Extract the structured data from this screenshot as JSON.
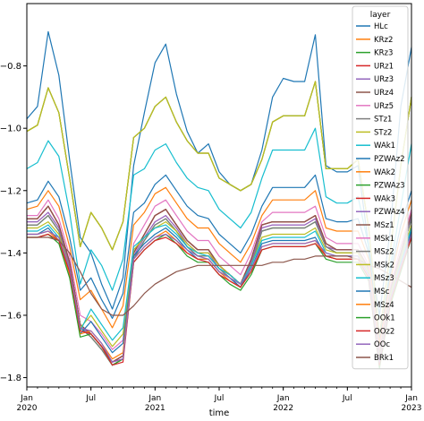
{
  "chart_data": {
    "type": "line",
    "xlabel": "time",
    "ylabel": "",
    "x_start": "2020-01",
    "x_end": "2023-01",
    "ylim": [
      -1.83,
      -0.6
    ],
    "yticks": [
      -0.8,
      -1.0,
      -1.2,
      -1.4,
      -1.6,
      -1.8
    ],
    "ytick_labels": [
      "−0.8",
      "−1.0",
      "−1.2",
      "−1.4",
      "−1.6",
      "−1.8"
    ],
    "xticks": [
      {
        "month": 0,
        "label": "Jan",
        "sub": "2020"
      },
      {
        "month": 6,
        "label": "Jul",
        "sub": ""
      },
      {
        "month": 12,
        "label": "Jan",
        "sub": "2021"
      },
      {
        "month": 18,
        "label": "Jul",
        "sub": ""
      },
      {
        "month": 24,
        "label": "Jan",
        "sub": "2022"
      },
      {
        "month": 30,
        "label": "Jul",
        "sub": ""
      },
      {
        "month": 36,
        "label": "Jan",
        "sub": "2023"
      }
    ],
    "grid": false,
    "legend": {
      "title": "layer",
      "placement": "top-right"
    },
    "series": [
      {
        "name": "HLc",
        "color": "#1f77b4",
        "values": [
          -0.97,
          -0.93,
          -0.69,
          -0.83,
          -1.1,
          -1.35,
          -1.4,
          -1.5,
          -1.58,
          -1.48,
          -1.12,
          -0.95,
          -0.79,
          -0.73,
          -0.89,
          -1.01,
          -1.08,
          -1.05,
          -1.14,
          -1.18,
          -1.2,
          -1.18,
          -1.07,
          -0.9,
          -0.84,
          -0.85,
          -0.85,
          -0.7,
          -1.12,
          -1.14,
          -1.14,
          -1.12,
          -1.38,
          -1.6,
          -1.33,
          -0.93,
          -0.74
        ]
      },
      {
        "name": "KRz2",
        "color": "#ff7f0e",
        "values": [
          -1.01,
          -0.99,
          -0.87,
          -0.95,
          -1.16,
          -1.38,
          -1.27,
          -1.32,
          -1.39,
          -1.3,
          -1.03,
          -1.0,
          -0.93,
          -0.9,
          -0.98,
          -1.04,
          -1.08,
          -1.08,
          -1.16,
          -1.18,
          -1.2,
          -1.18,
          -1.1,
          -0.98,
          -0.96,
          -0.96,
          -0.96,
          -0.85,
          -1.13,
          -1.13,
          -1.13,
          -1.1,
          -1.32,
          -1.67,
          -1.4,
          -1.12,
          -0.9
        ]
      },
      {
        "name": "KRz3",
        "color": "#2ca02c",
        "values": [
          -1.01,
          -0.99,
          -0.87,
          -0.95,
          -1.16,
          -1.38,
          -1.27,
          -1.32,
          -1.39,
          -1.3,
          -1.03,
          -1.0,
          -0.93,
          -0.9,
          -0.98,
          -1.04,
          -1.08,
          -1.08,
          -1.16,
          -1.18,
          -1.2,
          -1.18,
          -1.1,
          -0.98,
          -0.96,
          -0.96,
          -0.96,
          -0.85,
          -1.13,
          -1.13,
          -1.13,
          -1.1,
          -1.32,
          -1.67,
          -1.4,
          -1.12,
          -0.9
        ]
      },
      {
        "name": "URz1",
        "color": "#d62728",
        "values": [
          -1.29,
          -1.29,
          -1.25,
          -1.31,
          -1.43,
          -1.63,
          -1.66,
          -1.7,
          -1.75,
          -1.73,
          -1.4,
          -1.34,
          -1.28,
          -1.26,
          -1.31,
          -1.36,
          -1.39,
          -1.39,
          -1.44,
          -1.47,
          -1.5,
          -1.42,
          -1.31,
          -1.3,
          -1.3,
          -1.3,
          -1.3,
          -1.28,
          -1.37,
          -1.39,
          -1.39,
          -1.39,
          -1.45,
          -1.72,
          -1.52,
          -1.4,
          -1.27
        ]
      },
      {
        "name": "URz3",
        "color": "#9467bd",
        "values": [
          -1.29,
          -1.29,
          -1.25,
          -1.31,
          -1.43,
          -1.63,
          -1.66,
          -1.7,
          -1.75,
          -1.73,
          -1.4,
          -1.34,
          -1.28,
          -1.26,
          -1.31,
          -1.36,
          -1.39,
          -1.39,
          -1.44,
          -1.47,
          -1.5,
          -1.42,
          -1.31,
          -1.3,
          -1.3,
          -1.3,
          -1.3,
          -1.28,
          -1.37,
          -1.39,
          -1.39,
          -1.39,
          -1.45,
          -1.72,
          -1.52,
          -1.4,
          -1.27
        ]
      },
      {
        "name": "URz4",
        "color": "#8c564b",
        "values": [
          -1.29,
          -1.29,
          -1.25,
          -1.31,
          -1.43,
          -1.63,
          -1.66,
          -1.7,
          -1.75,
          -1.73,
          -1.4,
          -1.34,
          -1.28,
          -1.26,
          -1.31,
          -1.36,
          -1.39,
          -1.39,
          -1.44,
          -1.47,
          -1.5,
          -1.42,
          -1.31,
          -1.3,
          -1.3,
          -1.3,
          -1.3,
          -1.28,
          -1.37,
          -1.39,
          -1.39,
          -1.39,
          -1.45,
          -1.72,
          -1.52,
          -1.4,
          -1.27
        ]
      },
      {
        "name": "URz5",
        "color": "#e377c2",
        "values": [
          -1.3,
          -1.3,
          -1.27,
          -1.32,
          -1.44,
          -1.64,
          -1.66,
          -1.7,
          -1.75,
          -1.74,
          -1.41,
          -1.35,
          -1.3,
          -1.28,
          -1.32,
          -1.37,
          -1.4,
          -1.4,
          -1.45,
          -1.47,
          -1.5,
          -1.43,
          -1.32,
          -1.31,
          -1.31,
          -1.31,
          -1.31,
          -1.29,
          -1.38,
          -1.39,
          -1.39,
          -1.39,
          -1.45,
          -1.72,
          -1.52,
          -1.41,
          -1.28
        ]
      },
      {
        "name": "STz1",
        "color": "#7f7f7f",
        "values": [
          -1.31,
          -1.31,
          -1.28,
          -1.33,
          -1.45,
          -1.64,
          -1.67,
          -1.71,
          -1.76,
          -1.74,
          -1.42,
          -1.36,
          -1.31,
          -1.29,
          -1.33,
          -1.38,
          -1.41,
          -1.41,
          -1.45,
          -1.48,
          -1.51,
          -1.44,
          -1.33,
          -1.32,
          -1.32,
          -1.32,
          -1.32,
          -1.3,
          -1.38,
          -1.4,
          -1.4,
          -1.4,
          -1.46,
          -1.73,
          -1.53,
          -1.41,
          -1.29
        ]
      },
      {
        "name": "STz2",
        "color": "#bcbd22",
        "values": [
          -1.01,
          -0.99,
          -0.87,
          -0.95,
          -1.16,
          -1.38,
          -1.27,
          -1.32,
          -1.39,
          -1.3,
          -1.03,
          -1.0,
          -0.93,
          -0.9,
          -0.98,
          -1.04,
          -1.08,
          -1.08,
          -1.16,
          -1.18,
          -1.2,
          -1.18,
          -1.1,
          -0.98,
          -0.96,
          -0.96,
          -0.96,
          -0.85,
          -1.13,
          -1.13,
          -1.13,
          -1.1,
          -1.32,
          -1.67,
          -1.4,
          -1.12,
          -0.9
        ]
      },
      {
        "name": "WAk1",
        "color": "#17becf",
        "values": [
          -1.13,
          -1.11,
          -1.04,
          -1.09,
          -1.27,
          -1.5,
          -1.39,
          -1.44,
          -1.52,
          -1.42,
          -1.15,
          -1.13,
          -1.07,
          -1.05,
          -1.11,
          -1.16,
          -1.19,
          -1.2,
          -1.26,
          -1.29,
          -1.32,
          -1.27,
          -1.16,
          -1.07,
          -1.07,
          -1.07,
          -1.07,
          -1.0,
          -1.22,
          -1.24,
          -1.24,
          -1.22,
          -1.38,
          -1.7,
          -1.45,
          -1.25,
          -1.05
        ]
      },
      {
        "name": "PZWAz2",
        "color": "#1f77b4",
        "values": [
          -1.24,
          -1.23,
          -1.17,
          -1.22,
          -1.35,
          -1.52,
          -1.48,
          -1.55,
          -1.61,
          -1.53,
          -1.27,
          -1.24,
          -1.18,
          -1.15,
          -1.2,
          -1.25,
          -1.28,
          -1.29,
          -1.34,
          -1.37,
          -1.4,
          -1.34,
          -1.25,
          -1.19,
          -1.19,
          -1.19,
          -1.19,
          -1.15,
          -1.29,
          -1.3,
          -1.3,
          -1.29,
          -1.4,
          -1.68,
          -1.47,
          -1.31,
          -1.2
        ]
      },
      {
        "name": "WAk2",
        "color": "#ff7f0e",
        "values": [
          -1.26,
          -1.25,
          -1.2,
          -1.25,
          -1.38,
          -1.55,
          -1.52,
          -1.58,
          -1.64,
          -1.57,
          -1.31,
          -1.27,
          -1.21,
          -1.19,
          -1.24,
          -1.29,
          -1.32,
          -1.32,
          -1.37,
          -1.4,
          -1.43,
          -1.37,
          -1.28,
          -1.23,
          -1.23,
          -1.23,
          -1.23,
          -1.2,
          -1.32,
          -1.33,
          -1.33,
          -1.33,
          -1.42,
          -1.69,
          -1.49,
          -1.34,
          -1.23
        ]
      },
      {
        "name": "PZWAz3",
        "color": "#2ca02c",
        "values": [
          -1.31,
          -1.31,
          -1.28,
          -1.33,
          -1.45,
          -1.64,
          -1.67,
          -1.71,
          -1.76,
          -1.74,
          -1.42,
          -1.36,
          -1.31,
          -1.29,
          -1.33,
          -1.38,
          -1.41,
          -1.41,
          -1.45,
          -1.48,
          -1.51,
          -1.44,
          -1.33,
          -1.32,
          -1.32,
          -1.32,
          -1.32,
          -1.3,
          -1.38,
          -1.4,
          -1.4,
          -1.4,
          -1.46,
          -1.73,
          -1.53,
          -1.41,
          -1.29
        ]
      },
      {
        "name": "WAk3",
        "color": "#d62728",
        "values": [
          -1.29,
          -1.29,
          -1.25,
          -1.31,
          -1.43,
          -1.63,
          -1.66,
          -1.7,
          -1.75,
          -1.73,
          -1.4,
          -1.34,
          -1.28,
          -1.26,
          -1.31,
          -1.36,
          -1.39,
          -1.39,
          -1.44,
          -1.47,
          -1.5,
          -1.42,
          -1.31,
          -1.3,
          -1.3,
          -1.3,
          -1.3,
          -1.28,
          -1.37,
          -1.39,
          -1.39,
          -1.39,
          -1.45,
          -1.72,
          -1.52,
          -1.4,
          -1.27
        ]
      },
      {
        "name": "PZWAz4",
        "color": "#9467bd",
        "values": [
          -1.3,
          -1.3,
          -1.27,
          -1.32,
          -1.44,
          -1.64,
          -1.66,
          -1.7,
          -1.75,
          -1.74,
          -1.41,
          -1.35,
          -1.3,
          -1.28,
          -1.32,
          -1.37,
          -1.4,
          -1.4,
          -1.45,
          -1.47,
          -1.5,
          -1.43,
          -1.32,
          -1.31,
          -1.31,
          -1.31,
          -1.31,
          -1.29,
          -1.38,
          -1.39,
          -1.39,
          -1.39,
          -1.45,
          -1.72,
          -1.52,
          -1.41,
          -1.28
        ]
      },
      {
        "name": "MSz1",
        "color": "#8c564b",
        "values": [
          -1.29,
          -1.29,
          -1.25,
          -1.31,
          -1.43,
          -1.63,
          -1.66,
          -1.7,
          -1.75,
          -1.73,
          -1.4,
          -1.34,
          -1.28,
          -1.26,
          -1.31,
          -1.36,
          -1.39,
          -1.39,
          -1.44,
          -1.47,
          -1.5,
          -1.42,
          -1.31,
          -1.3,
          -1.3,
          -1.3,
          -1.3,
          -1.28,
          -1.37,
          -1.39,
          -1.39,
          -1.39,
          -1.45,
          -1.72,
          -1.52,
          -1.4,
          -1.27
        ]
      },
      {
        "name": "MSk1",
        "color": "#e377c2",
        "values": [
          -1.28,
          -1.28,
          -1.23,
          -1.29,
          -1.41,
          -1.6,
          -1.62,
          -1.66,
          -1.71,
          -1.68,
          -1.37,
          -1.31,
          -1.25,
          -1.23,
          -1.28,
          -1.33,
          -1.36,
          -1.36,
          -1.41,
          -1.44,
          -1.47,
          -1.4,
          -1.3,
          -1.27,
          -1.27,
          -1.27,
          -1.27,
          -1.25,
          -1.35,
          -1.37,
          -1.37,
          -1.37,
          -1.44,
          -1.71,
          -1.51,
          -1.38,
          -1.26
        ]
      },
      {
        "name": "MSz2",
        "color": "#7f7f7f",
        "values": [
          -1.31,
          -1.31,
          -1.28,
          -1.33,
          -1.45,
          -1.64,
          -1.67,
          -1.71,
          -1.76,
          -1.74,
          -1.42,
          -1.36,
          -1.31,
          -1.29,
          -1.33,
          -1.38,
          -1.41,
          -1.41,
          -1.45,
          -1.48,
          -1.51,
          -1.44,
          -1.33,
          -1.32,
          -1.32,
          -1.32,
          -1.32,
          -1.3,
          -1.38,
          -1.4,
          -1.4,
          -1.4,
          -1.46,
          -1.73,
          -1.53,
          -1.41,
          -1.29
        ]
      },
      {
        "name": "MSk2",
        "color": "#bcbd22",
        "values": [
          -1.32,
          -1.32,
          -1.3,
          -1.34,
          -1.45,
          -1.64,
          -1.6,
          -1.65,
          -1.7,
          -1.66,
          -1.39,
          -1.35,
          -1.32,
          -1.3,
          -1.33,
          -1.37,
          -1.4,
          -1.4,
          -1.44,
          -1.47,
          -1.5,
          -1.44,
          -1.35,
          -1.34,
          -1.34,
          -1.34,
          -1.34,
          -1.32,
          -1.39,
          -1.4,
          -1.4,
          -1.4,
          -1.46,
          -1.74,
          -1.54,
          -1.42,
          -1.31
        ]
      },
      {
        "name": "MSz3",
        "color": "#17becf",
        "values": [
          -1.33,
          -1.33,
          -1.31,
          -1.35,
          -1.46,
          -1.65,
          -1.58,
          -1.63,
          -1.68,
          -1.64,
          -1.38,
          -1.35,
          -1.32,
          -1.31,
          -1.34,
          -1.38,
          -1.4,
          -1.41,
          -1.45,
          -1.47,
          -1.5,
          -1.44,
          -1.36,
          -1.35,
          -1.35,
          -1.35,
          -1.35,
          -1.33,
          -1.4,
          -1.41,
          -1.41,
          -1.41,
          -1.47,
          -1.75,
          -1.55,
          -1.43,
          -1.32
        ]
      },
      {
        "name": "MSc",
        "color": "#1f77b4",
        "values": [
          -1.34,
          -1.34,
          -1.32,
          -1.36,
          -1.47,
          -1.66,
          -1.62,
          -1.67,
          -1.72,
          -1.69,
          -1.41,
          -1.37,
          -1.34,
          -1.32,
          -1.35,
          -1.39,
          -1.42,
          -1.42,
          -1.46,
          -1.48,
          -1.51,
          -1.45,
          -1.37,
          -1.36,
          -1.36,
          -1.36,
          -1.36,
          -1.35,
          -1.41,
          -1.42,
          -1.42,
          -1.42,
          -1.48,
          -1.76,
          -1.56,
          -1.44,
          -1.33
        ]
      },
      {
        "name": "MSz4",
        "color": "#ff7f0e",
        "values": [
          -1.34,
          -1.34,
          -1.33,
          -1.36,
          -1.47,
          -1.66,
          -1.65,
          -1.69,
          -1.74,
          -1.72,
          -1.42,
          -1.38,
          -1.35,
          -1.33,
          -1.36,
          -1.4,
          -1.42,
          -1.42,
          -1.46,
          -1.49,
          -1.51,
          -1.46,
          -1.38,
          -1.37,
          -1.37,
          -1.37,
          -1.37,
          -1.36,
          -1.41,
          -1.42,
          -1.42,
          -1.42,
          -1.48,
          -1.76,
          -1.56,
          -1.45,
          -1.34
        ]
      },
      {
        "name": "OOk1",
        "color": "#2ca02c",
        "values": [
          -1.35,
          -1.35,
          -1.34,
          -1.37,
          -1.48,
          -1.67,
          -1.66,
          -1.7,
          -1.76,
          -1.74,
          -1.43,
          -1.39,
          -1.36,
          -1.34,
          -1.37,
          -1.41,
          -1.43,
          -1.43,
          -1.47,
          -1.5,
          -1.52,
          -1.47,
          -1.39,
          -1.38,
          -1.38,
          -1.38,
          -1.38,
          -1.37,
          -1.42,
          -1.43,
          -1.43,
          -1.43,
          -1.49,
          -1.77,
          -1.57,
          -1.46,
          -1.35
        ]
      },
      {
        "name": "OOz2",
        "color": "#d62728",
        "values": [
          -1.35,
          -1.35,
          -1.34,
          -1.36,
          -1.46,
          -1.65,
          -1.66,
          -1.7,
          -1.76,
          -1.75,
          -1.43,
          -1.39,
          -1.36,
          -1.35,
          -1.37,
          -1.4,
          -1.42,
          -1.43,
          -1.47,
          -1.49,
          -1.51,
          -1.46,
          -1.39,
          -1.38,
          -1.38,
          -1.38,
          -1.38,
          -1.37,
          -1.41,
          -1.42,
          -1.42,
          -1.42,
          -1.48,
          -1.76,
          -1.56,
          -1.45,
          -1.35
        ]
      },
      {
        "name": "OOc",
        "color": "#9467bd",
        "values": [
          -1.34,
          -1.34,
          -1.33,
          -1.35,
          -1.45,
          -1.64,
          -1.65,
          -1.69,
          -1.75,
          -1.74,
          -1.42,
          -1.38,
          -1.35,
          -1.34,
          -1.36,
          -1.39,
          -1.41,
          -1.42,
          -1.46,
          -1.48,
          -1.5,
          -1.45,
          -1.38,
          -1.37,
          -1.37,
          -1.37,
          -1.37,
          -1.36,
          -1.4,
          -1.41,
          -1.41,
          -1.41,
          -1.47,
          -1.75,
          -1.55,
          -1.44,
          -1.34
        ]
      },
      {
        "name": "BRk1",
        "color": "#8c564b",
        "values": [
          -1.35,
          -1.35,
          -1.35,
          -1.36,
          -1.4,
          -1.46,
          -1.53,
          -1.58,
          -1.6,
          -1.6,
          -1.57,
          -1.53,
          -1.5,
          -1.48,
          -1.46,
          -1.45,
          -1.44,
          -1.44,
          -1.44,
          -1.44,
          -1.44,
          -1.44,
          -1.44,
          -1.43,
          -1.43,
          -1.42,
          -1.42,
          -1.41,
          -1.41,
          -1.41,
          -1.41,
          -1.42,
          -1.44,
          -1.45,
          -1.47,
          -1.49,
          -1.51
        ]
      }
    ]
  }
}
